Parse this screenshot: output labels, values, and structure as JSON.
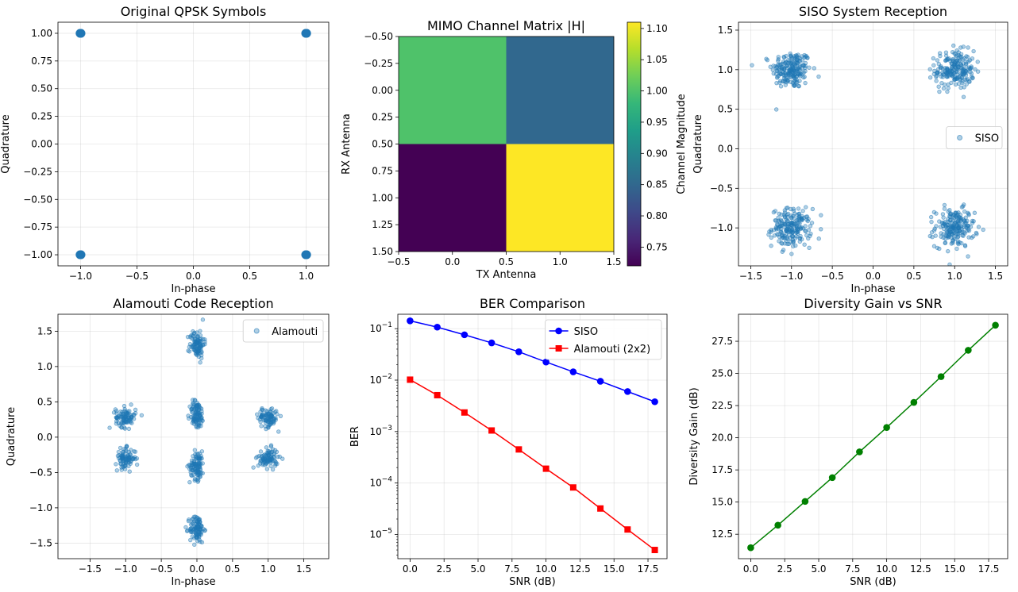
{
  "chart_data": [
    {
      "id": "qpsk",
      "type": "scatter",
      "title": "Original QPSK Symbols",
      "xlabel": "In-phase",
      "ylabel": "Quadrature",
      "xlim": [
        -1.2,
        1.2
      ],
      "ylim": [
        -1.1,
        1.1
      ],
      "xticks": [
        -1.0,
        -0.5,
        0.0,
        0.5,
        1.0
      ],
      "xtick_labels": [
        "−1.0",
        "−0.5",
        "0.0",
        "0.5",
        "1.0"
      ],
      "yticks": [
        -1.0,
        -0.75,
        -0.5,
        -0.25,
        0.0,
        0.25,
        0.5,
        0.75,
        1.0
      ],
      "ytick_labels": [
        "−1.00",
        "−0.75",
        "−0.50",
        "−0.25",
        "0.00",
        "0.25",
        "0.50",
        "0.75",
        "1.00"
      ],
      "grid": true,
      "color": "#1f77b4",
      "points": [
        [
          -1,
          1
        ],
        [
          1,
          1
        ],
        [
          -1,
          -1
        ],
        [
          1,
          -1
        ]
      ]
    },
    {
      "id": "mimo",
      "type": "heatmap",
      "title": "MIMO Channel Matrix |H|",
      "xlabel": "TX Antenna",
      "ylabel": "RX Antenna",
      "xlim": [
        -0.5,
        1.5
      ],
      "ylim": [
        1.5,
        -0.5
      ],
      "xticks": [
        -0.5,
        0.0,
        0.5,
        1.0,
        1.5
      ],
      "xtick_labels": [
        "−0.5",
        "0.0",
        "0.5",
        "1.0",
        "1.5"
      ],
      "yticks": [
        -0.5,
        -0.25,
        0.0,
        0.25,
        0.5,
        0.75,
        1.0,
        1.25,
        1.5
      ],
      "ytick_labels": [
        "−0.50",
        "−0.25",
        "0.00",
        "0.25",
        "0.50",
        "0.75",
        "1.00",
        "1.25",
        "1.50"
      ],
      "grid": false,
      "values": [
        [
          1.0,
          0.85
        ],
        [
          0.72,
          1.11
        ]
      ],
      "colorbar": {
        "label": "Channel Magnitude",
        "range": [
          0.72,
          1.11
        ],
        "ticks": [
          0.75,
          0.8,
          0.85,
          0.9,
          0.95,
          1.0,
          1.05,
          1.1
        ],
        "tick_labels": [
          "0.75",
          "0.80",
          "0.85",
          "0.90",
          "0.95",
          "1.00",
          "1.05",
          "1.10"
        ],
        "colormap": "viridis"
      }
    },
    {
      "id": "siso",
      "type": "scatter",
      "title": "SISO System Reception",
      "xlabel": "In-phase",
      "ylabel": "Quadrature",
      "xlim": [
        -1.65,
        1.65
      ],
      "ylim": [
        -1.48,
        1.6
      ],
      "xticks": [
        -1.5,
        -1.0,
        -0.5,
        0.0,
        0.5,
        1.0,
        1.5
      ],
      "xtick_labels": [
        "−1.5",
        "−1.0",
        "−0.5",
        "0.0",
        "0.5",
        "1.0",
        "1.5"
      ],
      "yticks": [
        -1.0,
        -0.5,
        0.0,
        0.5,
        1.0,
        1.5
      ],
      "ytick_labels": [
        "−1.0",
        "−0.5",
        "0.0",
        "0.5",
        "1.0",
        "1.5"
      ],
      "grid": true,
      "color": "#1f77b4",
      "legend": {
        "label": "SISO",
        "position": "center-right"
      },
      "clusters": [
        {
          "center": [
            -1,
            1
          ],
          "std": 0.12,
          "count": 200
        },
        {
          "center": [
            1,
            1
          ],
          "std": 0.12,
          "count": 200
        },
        {
          "center": [
            -1,
            -1
          ],
          "std": 0.12,
          "count": 200
        },
        {
          "center": [
            1,
            -1
          ],
          "std": 0.12,
          "count": 200
        }
      ]
    },
    {
      "id": "alamouti",
      "type": "scatter",
      "title": "Alamouti Code Reception",
      "xlabel": "In-phase",
      "ylabel": "Quadrature",
      "xlim": [
        -1.95,
        1.85
      ],
      "ylim": [
        -1.72,
        1.74
      ],
      "xticks": [
        -1.5,
        -1.0,
        -0.5,
        0.0,
        0.5,
        1.0,
        1.5
      ],
      "xtick_labels": [
        "−1.5",
        "−1.0",
        "−0.5",
        "0.0",
        "0.5",
        "1.0",
        "1.5"
      ],
      "yticks": [
        -1.5,
        -1.0,
        -0.5,
        0.0,
        0.5,
        1.0,
        1.5
      ],
      "ytick_labels": [
        "−1.5",
        "−1.0",
        "−0.5",
        "0.0",
        "0.5",
        "1.0",
        "1.5"
      ],
      "grid": true,
      "color": "#1f77b4",
      "legend": {
        "label": "Alamouti",
        "position": "top-right"
      },
      "clusters": [
        {
          "center": [
            0,
            1.32
          ],
          "std": [
            0.05,
            0.1
          ],
          "count": 100
        },
        {
          "center": [
            0,
            -1.3
          ],
          "std": [
            0.05,
            0.1
          ],
          "count": 100
        },
        {
          "center": [
            0,
            0.32
          ],
          "std": [
            0.05,
            0.1
          ],
          "count": 100
        },
        {
          "center": [
            0,
            -0.4
          ],
          "std": [
            0.05,
            0.1
          ],
          "count": 100
        },
        {
          "center": [
            -1,
            0.28
          ],
          "std": [
            0.07,
            0.07
          ],
          "count": 90
        },
        {
          "center": [
            -1,
            -0.3
          ],
          "std": [
            0.07,
            0.07
          ],
          "count": 90
        },
        {
          "center": [
            1,
            0.28
          ],
          "std": [
            0.07,
            0.07
          ],
          "count": 90
        },
        {
          "center": [
            1,
            -0.3
          ],
          "std": [
            0.07,
            0.07
          ],
          "count": 90
        }
      ]
    },
    {
      "id": "ber",
      "type": "line",
      "title": "BER Comparison",
      "xlabel": "SNR (dB)",
      "ylabel": "BER",
      "xlim": [
        -0.9,
        18.9
      ],
      "ylim_log10": [
        -5.47,
        -0.72
      ],
      "xticks": [
        0,
        2.5,
        5,
        7.5,
        10,
        12.5,
        15,
        17.5
      ],
      "xtick_labels": [
        "0.0",
        "2.5",
        "5.0",
        "7.5",
        "10.0",
        "12.5",
        "15.0",
        "17.5"
      ],
      "ytick_exponents": [
        -5,
        -4,
        -3,
        -2,
        -1
      ],
      "ytick_base": "10",
      "yscale": "log",
      "grid": true,
      "legend": {
        "position": "top-right"
      },
      "x": [
        0,
        2,
        4,
        6,
        8,
        10,
        12,
        14,
        16,
        18
      ],
      "series": [
        {
          "name": "SISO",
          "color": "#0000ff",
          "marker": "circle",
          "values": [
            0.142,
            0.107,
            0.076,
            0.053,
            0.0355,
            0.0225,
            0.0145,
            0.0095,
            0.006,
            0.0038
          ]
        },
        {
          "name": "Alamouti (2x2)",
          "color": "#ff0000",
          "marker": "square",
          "values": [
            0.0102,
            0.0051,
            0.00235,
            0.00105,
            0.00045,
            0.00019,
            8.2e-05,
            3.2e-05,
            1.25e-05,
            5e-06
          ]
        }
      ]
    },
    {
      "id": "gain",
      "type": "line",
      "title": "Diversity Gain vs SNR",
      "xlabel": "SNR (dB)",
      "ylabel": "Diversity Gain (dB)",
      "xlim": [
        -0.9,
        18.9
      ],
      "ylim": [
        10.6,
        29.6
      ],
      "xticks": [
        0,
        2.5,
        5,
        7.5,
        10,
        12.5,
        15,
        17.5
      ],
      "xtick_labels": [
        "0.0",
        "2.5",
        "5.0",
        "7.5",
        "10.0",
        "12.5",
        "15.0",
        "17.5"
      ],
      "yticks": [
        12.5,
        15,
        17.5,
        20,
        22.5,
        25,
        27.5
      ],
      "ytick_labels": [
        "12.5",
        "15.0",
        "17.5",
        "20.0",
        "22.5",
        "25.0",
        "27.5"
      ],
      "grid": true,
      "x": [
        0,
        2,
        4,
        6,
        8,
        10,
        12,
        14,
        16,
        18
      ],
      "series": [
        {
          "color": "#008000",
          "marker": "circle",
          "values": [
            11.45,
            13.2,
            15.05,
            16.9,
            18.9,
            20.8,
            22.75,
            24.75,
            26.8,
            28.75
          ]
        }
      ]
    }
  ]
}
